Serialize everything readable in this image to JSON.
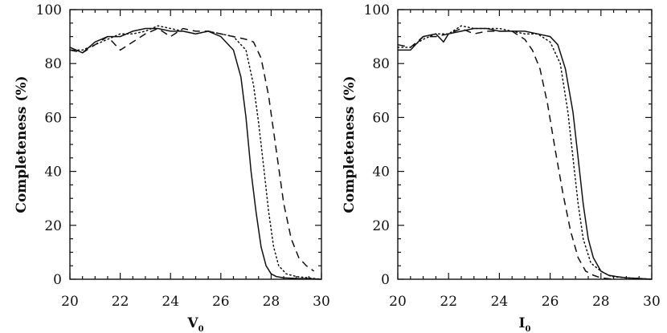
{
  "chart_data": [
    {
      "type": "line",
      "xlabel": "V",
      "xlabel_sub": "0",
      "ylabel": "Completeness (%)",
      "xlim": [
        20,
        30
      ],
      "ylim": [
        0,
        100
      ],
      "xticks": [
        20,
        22,
        24,
        26,
        28,
        30
      ],
      "yticks": [
        0,
        20,
        40,
        60,
        80,
        100
      ],
      "series": [
        {
          "style": "solid",
          "x": [
            20.0,
            20.5,
            21.0,
            21.5,
            22.0,
            22.5,
            23.0,
            23.5,
            24.0,
            24.5,
            25.0,
            25.5,
            26.0,
            26.5,
            26.8,
            27.0,
            27.2,
            27.4,
            27.6,
            27.8,
            28.0,
            28.2,
            28.5,
            29.0,
            29.5,
            30.0
          ],
          "y": [
            86,
            84,
            88,
            90,
            90,
            92,
            93,
            93,
            92,
            92,
            91,
            92,
            90,
            85,
            75,
            60,
            40,
            25,
            12,
            5,
            2,
            1,
            0.5,
            0.3,
            0.2,
            0
          ]
        },
        {
          "style": "dotted",
          "x": [
            20.0,
            20.5,
            21.0,
            21.5,
            22.0,
            22.5,
            23.0,
            23.5,
            24.0,
            24.5,
            25.0,
            25.5,
            26.0,
            26.5,
            27.0,
            27.3,
            27.5,
            27.7,
            27.9,
            28.1,
            28.3,
            28.6,
            29.0,
            29.5,
            30.0
          ],
          "y": [
            85,
            85,
            87,
            89,
            91,
            91,
            92,
            94,
            93,
            92,
            91,
            92,
            91,
            90,
            85,
            72,
            58,
            42,
            25,
            12,
            5,
            2,
            1,
            0.5,
            0
          ]
        },
        {
          "style": "dashed",
          "x": [
            20.0,
            20.5,
            21.0,
            21.5,
            22.0,
            22.5,
            23.0,
            23.5,
            24.0,
            24.5,
            25.0,
            25.5,
            26.0,
            26.5,
            27.0,
            27.3,
            27.6,
            27.9,
            28.2,
            28.5,
            28.8,
            29.1,
            29.4,
            29.7
          ],
          "y": [
            85,
            84,
            87,
            90,
            85,
            88,
            91,
            93,
            90,
            93,
            92,
            92,
            91,
            90,
            89,
            88,
            82,
            68,
            48,
            28,
            15,
            8,
            5,
            3
          ]
        }
      ]
    },
    {
      "type": "line",
      "xlabel": "I",
      "xlabel_sub": "0",
      "ylabel": "Completeness (%)",
      "xlim": [
        20,
        30
      ],
      "ylim": [
        0,
        100
      ],
      "xticks": [
        20,
        22,
        24,
        26,
        28,
        30
      ],
      "yticks": [
        0,
        20,
        40,
        60,
        80,
        100
      ],
      "series": [
        {
          "style": "solid",
          "x": [
            20.0,
            20.5,
            21.0,
            21.5,
            21.8,
            22.0,
            22.5,
            23.0,
            23.5,
            24.0,
            24.5,
            25.0,
            25.5,
            26.0,
            26.3,
            26.6,
            26.9,
            27.1,
            27.3,
            27.5,
            27.7,
            28.0,
            28.3,
            28.6,
            29.0,
            29.5,
            30.0
          ],
          "y": [
            85,
            85,
            90,
            91,
            88,
            91,
            92,
            93,
            93,
            92,
            92,
            92,
            91,
            90,
            87,
            78,
            62,
            45,
            28,
            15,
            8,
            3,
            1.5,
            1,
            0.5,
            0.3,
            0
          ]
        },
        {
          "style": "dotted",
          "x": [
            20.0,
            20.5,
            21.0,
            21.5,
            22.0,
            22.5,
            23.0,
            23.5,
            24.0,
            24.5,
            25.0,
            25.5,
            26.0,
            26.4,
            26.7,
            26.9,
            27.1,
            27.3,
            27.6,
            28.0,
            28.4,
            29.0,
            29.5,
            30.0
          ],
          "y": [
            86,
            86,
            89,
            91,
            91,
            94,
            93,
            93,
            93,
            92,
            91,
            91,
            88,
            80,
            62,
            45,
            28,
            15,
            6,
            3,
            1,
            0.5,
            0.3,
            0
          ]
        },
        {
          "style": "dashed",
          "x": [
            20.0,
            20.5,
            21.0,
            21.5,
            22.0,
            22.5,
            23.0,
            23.5,
            24.0,
            24.5,
            25.0,
            25.3,
            25.6,
            25.9,
            26.2,
            26.5,
            26.8,
            27.1,
            27.4,
            27.7,
            28.0,
            28.5
          ],
          "y": [
            87,
            86,
            90,
            90,
            91,
            93,
            91,
            92,
            92,
            92,
            89,
            85,
            78,
            65,
            48,
            32,
            18,
            8,
            3,
            1.5,
            0.5,
            0
          ]
        }
      ]
    }
  ]
}
